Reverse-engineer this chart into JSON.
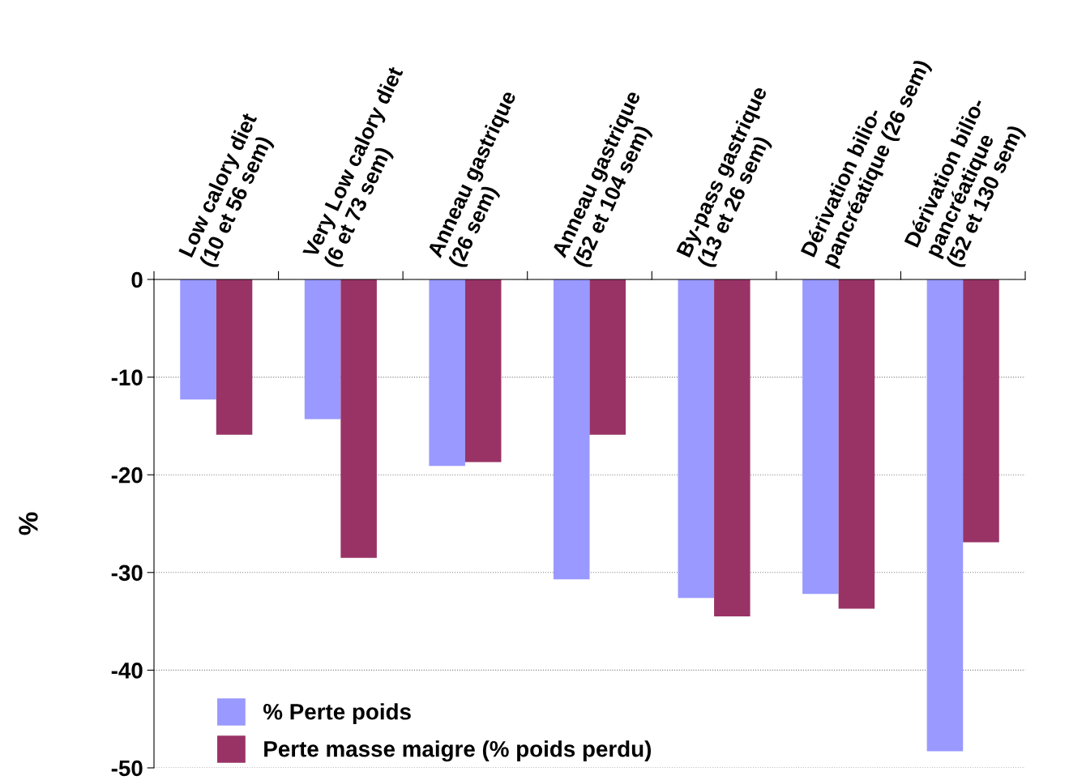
{
  "chart_data": {
    "type": "bar",
    "ylabel": "%",
    "categories": [
      "Low calory diet\n(10 et 56 sem)",
      "Very Low calory diet\n(6 et 73 sem)",
      "Anneau gastrique\n(26 sem)",
      "Anneau gastrique\n(52 et 104 sem)",
      "By-pass gastrique\n(13 et 26 sem)",
      "Dérivation bilio-\npancréatique (26 sem)",
      "Dérivation bilio-\npancréatique\n(52 et 130 sem)"
    ],
    "series": [
      {
        "name": "% Perte poids",
        "color": "#9999ff",
        "values": [
          -12.3,
          -14.3,
          -19.1,
          -30.7,
          -32.6,
          -32.2,
          -48.3
        ]
      },
      {
        "name": "Perte masse maigre (% poids perdu)",
        "color": "#993366",
        "values": [
          -15.9,
          -28.5,
          -18.7,
          -15.9,
          -34.5,
          -33.7,
          -26.9
        ]
      }
    ],
    "ylim": [
      -50,
      0
    ],
    "yticks": [
      -50,
      -40,
      -30,
      -20,
      -10,
      0
    ],
    "grid": "y",
    "legend": "bottom left"
  }
}
